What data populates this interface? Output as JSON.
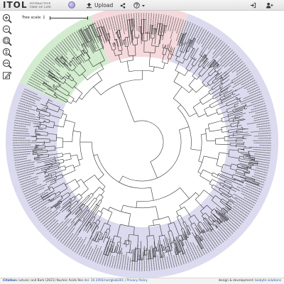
{
  "header": {
    "logo_main": "ITOL",
    "logo_sub_line1": "INTERACTIVE",
    "logo_sub_line2": "TREE OF LIFE",
    "upload_label": "Upload",
    "accent": "#8f82c8"
  },
  "tree": {
    "scale_label": "Tree scale: 1",
    "clade_colors": {
      "green": "#d3ecd0",
      "pink": "#f6d9dc",
      "lavender": "#dcdaee"
    }
  },
  "toolbar_icons": [
    "zoom-in-icon",
    "zoom-out-icon",
    "zoom-fit-icon",
    "rotate-icon",
    "search-icon",
    "edit-icon"
  ],
  "footer": {
    "citation_prefix": "Citation:",
    "citation_text": "Letunic and Bork (2021) Nucleic Acids Res",
    "doi_text": "doi: 10.1093/nar/gkab301",
    "privacy_text": "| Privacy Policy",
    "credit_prefix": "design & development:",
    "credit_link": "biobyte solutions"
  }
}
